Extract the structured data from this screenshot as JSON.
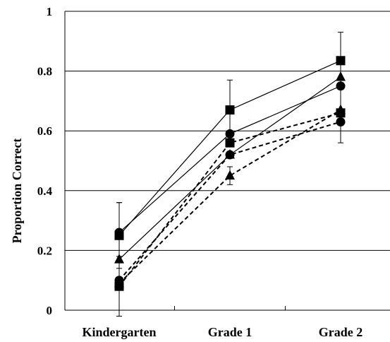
{
  "chart_data": {
    "type": "line",
    "title": "",
    "xlabel": "",
    "ylabel": "Proportion Correct",
    "ylim": [
      0,
      1
    ],
    "yticks": [
      0,
      0.2,
      0.4,
      0.6,
      0.8,
      1
    ],
    "ytick_labels": [
      "0",
      "0.2",
      "0.4",
      "0.6",
      "0.8",
      "1"
    ],
    "categories": [
      "Kindergarten",
      "Grade 1",
      "Grade 2"
    ],
    "grid": "horizontal",
    "legend": "none",
    "series": [
      {
        "marker": "square",
        "line": "solid",
        "values": [
          0.25,
          0.67,
          0.835
        ],
        "error": [
          0.11,
          0.1,
          0.095
        ]
      },
      {
        "marker": "circle",
        "line": "solid",
        "values": [
          0.26,
          0.59,
          0.75
        ],
        "error": [
          0.1,
          0.0,
          0.0
        ]
      },
      {
        "marker": "triangle",
        "line": "solid",
        "values": [
          0.17,
          0.52,
          0.78
        ],
        "error": [
          0.0,
          0.0,
          0.0
        ]
      },
      {
        "marker": "square",
        "line": "dashed",
        "values": [
          0.08,
          0.56,
          0.66
        ],
        "error": [
          0.1,
          0.0,
          0.1
        ]
      },
      {
        "marker": "circle",
        "line": "dashed",
        "values": [
          0.1,
          0.52,
          0.63
        ],
        "error": [
          0.0,
          0.0,
          0.0
        ]
      },
      {
        "marker": "triangle",
        "line": "dashed",
        "values": [
          0.09,
          0.45,
          0.67
        ],
        "error": [
          0.0,
          0.03,
          0.0
        ]
      }
    ]
  }
}
